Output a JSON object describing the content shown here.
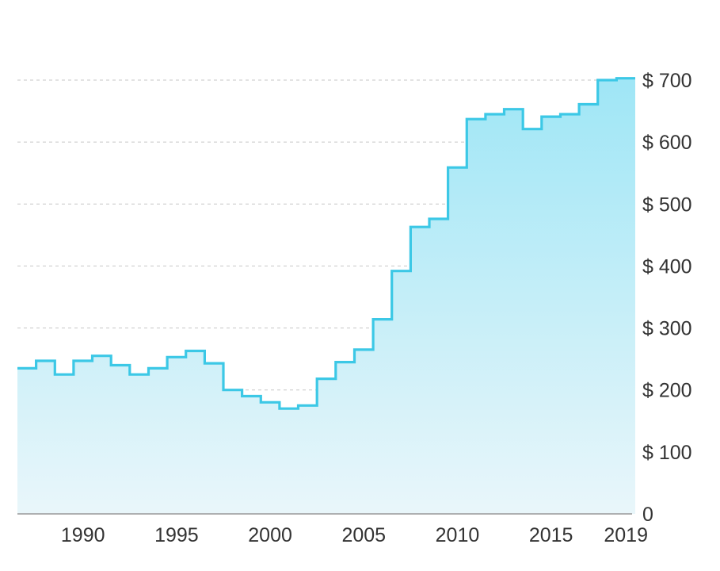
{
  "chart_data": {
    "type": "area",
    "step": true,
    "x_start": 1987,
    "x_end": 2020,
    "x_ticks": [
      1990,
      1995,
      2000,
      2005,
      2010,
      2015,
      2019
    ],
    "x_tick_labels": [
      "1990",
      "1995",
      "2000",
      "2005",
      "2010",
      "2015",
      "2019"
    ],
    "y_ticks": [
      0,
      100,
      200,
      300,
      400,
      500,
      600,
      700
    ],
    "y_tick_labels": [
      "0",
      "$ 100",
      "$ 200",
      "$ 300",
      "$ 400",
      "$ 500",
      "$ 600",
      "$ 700"
    ],
    "ylim": [
      0,
      700
    ],
    "grid": true,
    "y_axis_position": "right",
    "colors": {
      "line": "#3cc8e6",
      "fill_top": "#9fe6f6",
      "fill_bottom": "#e9f6fa"
    },
    "years": [
      1987,
      1988,
      1989,
      1990,
      1991,
      1992,
      1993,
      1994,
      1995,
      1996,
      1997,
      1998,
      1999,
      2000,
      2001,
      2002,
      2003,
      2004,
      2005,
      2006,
      2007,
      2008,
      2009,
      2010,
      2011,
      2012,
      2013,
      2014,
      2015,
      2016,
      2017,
      2018,
      2019
    ],
    "values": [
      235,
      247,
      225,
      247,
      255,
      240,
      225,
      235,
      253,
      263,
      243,
      200,
      190,
      180,
      170,
      175,
      218,
      245,
      265,
      314,
      392,
      463,
      476,
      559,
      637,
      645,
      653,
      621,
      641,
      645,
      661,
      700,
      703
    ]
  }
}
